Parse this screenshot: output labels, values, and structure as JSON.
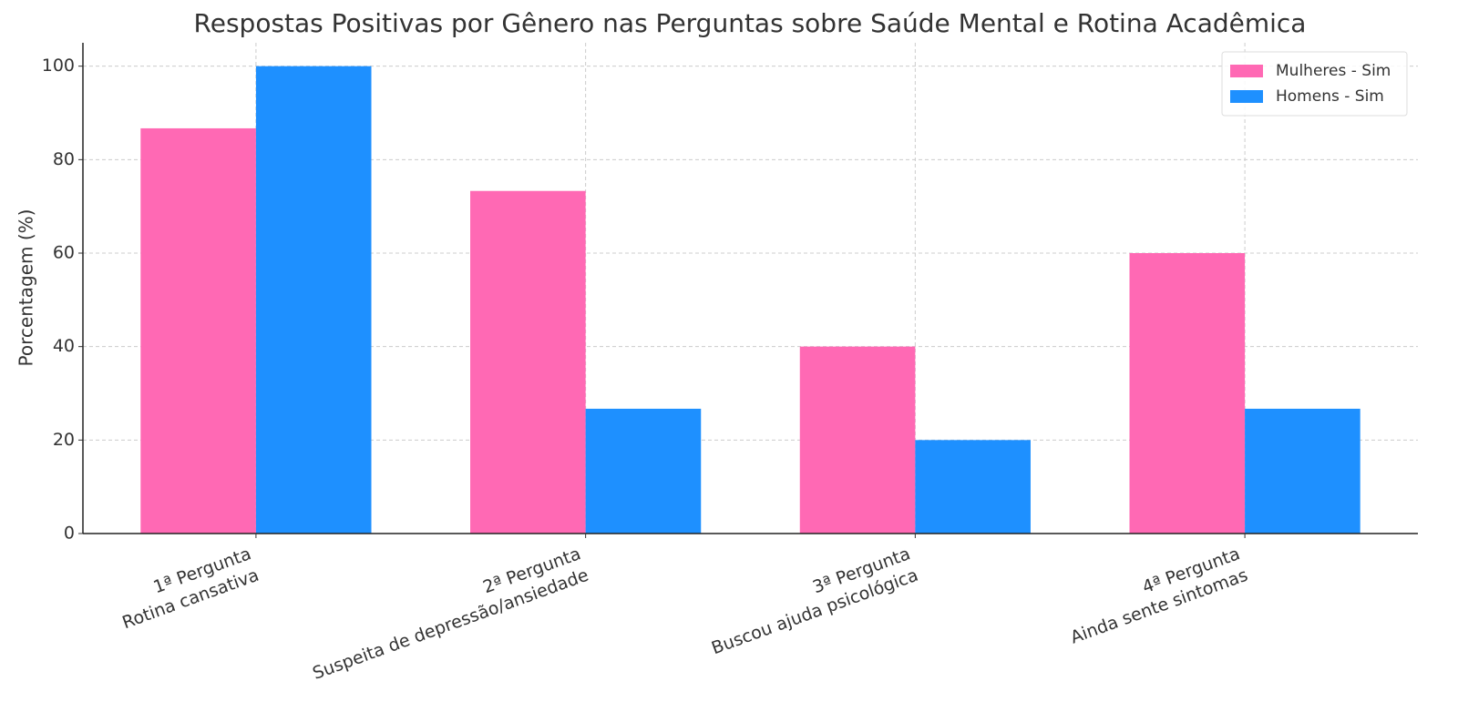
{
  "chart_data": {
    "type": "bar",
    "title": "Respostas Positivas por Gênero nas Perguntas sobre Saúde Mental e Rotina Acadêmica",
    "y_label": "Porcentagem (%)",
    "categories": [
      [
        "1ª Pergunta",
        "Rotina cansativa"
      ],
      [
        "2ª Pergunta",
        "Suspeita de depressão/ansiedade"
      ],
      [
        "3ª Pergunta",
        "Buscou ajuda psicológica"
      ],
      [
        "4ª Pergunta",
        "Ainda sente sintomas"
      ]
    ],
    "series": [
      {
        "name": "Mulheres - Sim",
        "color": "#ff69b4",
        "values": [
          86.7,
          73.3,
          40,
          60
        ]
      },
      {
        "name": "Homens - Sim",
        "color": "#1e90ff",
        "values": [
          100,
          26.7,
          20,
          26.7
        ]
      }
    ],
    "ylim": [
      0,
      105
    ],
    "yticks": [
      0,
      20,
      40,
      60,
      80,
      100
    ],
    "grid": true,
    "legend": "upper-right"
  }
}
